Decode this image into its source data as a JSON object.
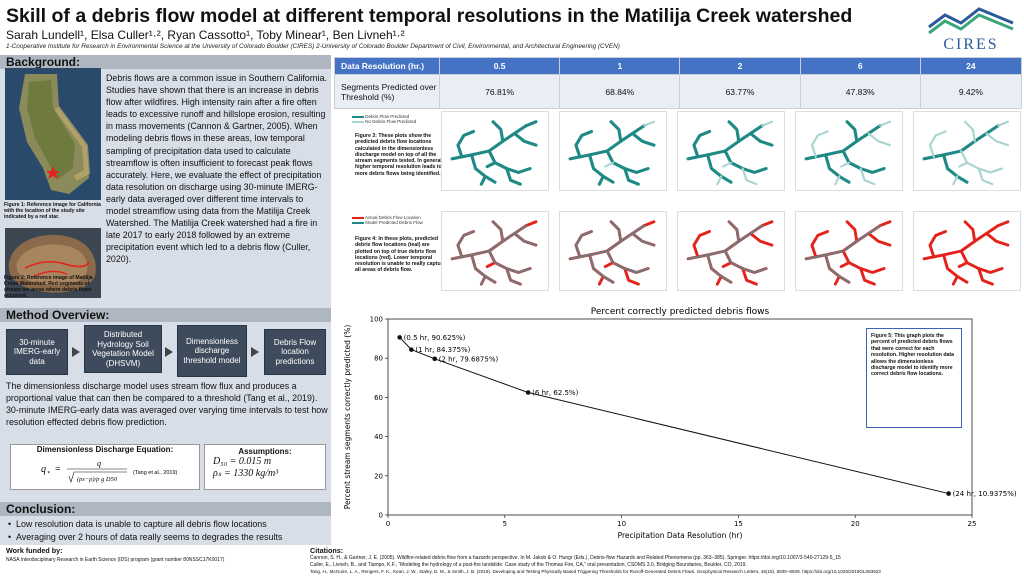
{
  "header": {
    "title": "Skill of a debris flow model at different temporal resolutions in the Matilija Creek watershed",
    "authors": "Sarah Lundell¹, Elsa Culler¹·², Ryan Cassotto¹, Toby Minear¹, Ben Livneh¹·²",
    "affiliations": "1-Cooperative Institute for Research in Environmental Science at the University of Colorado Boulder (CIRES)  2-University of Colorado Boulder Department of Civil, Environmental, and Architectural Engineering (CVEN)",
    "logo_text": "CIRES"
  },
  "background": {
    "title": "Background:",
    "text": "Debris flows are a common issue in Southern California. Studies have shown that there is an increase in debris flow after wildfires. High intensity rain after a fire often leads to excessive runoff and hillslope erosion, resulting in mass movements (Cannon & Gartner, 2005). When modeling debris flows in these areas, low temporal sampling of precipitation data used to calculate streamflow is often insufficient to forecast peak flows accurately. Here, we evaluate the effect of precipitation data resolution on discharge using 30-minute IMERG-early data averaged over different time intervals to model streamflow using data from the Matilija Creek Watershed. The Matilija Creek watershed had a fire in late 2017 to early 2018 followed by an extreme precipitation event which led to a debris flow (Culler, 2020).",
    "fig1_caption": "Figure 1: Reference image for California with the location of the study site indicated by a red star.",
    "fig2_caption": "Figure 2: Reference image of Matilija Creek Watershed. Red segments of stream are areas where debris flows occurred."
  },
  "method": {
    "title": "Method Overview:",
    "steps": [
      "30-minute IMERG-early data",
      "Distributed Hydrology Soil Vegetation Model (DHSVM)",
      "Dimensionless discharge threshold model",
      "Debris Flow location predictions"
    ],
    "text": "The dimensionless discharge model uses stream flow flux and produces a proportional value that can then be compared to a threshold (Tang et al., 2019). 30-minute IMERG-early data was averaged over varying time intervals to test how resolution effected debris flow prediction.",
    "eq_title": "Dimensionless Discharge Equation:",
    "eq_ref": "(Tang et al., 2019)",
    "assump_title": "Assumptions:",
    "assump_1": "D₅₀ = 0.015 m",
    "assump_2": "ρₛ = 1330 kg/m³"
  },
  "conclusion": {
    "title": "Conclusion:",
    "items": [
      "Low resolution data is unable to capture all debris flow locations",
      "Averaging over 2 hours of data really seems to degrades the results"
    ]
  },
  "footer": {
    "funded_title": "Work funded by:",
    "funded_text": "NASA Interdisciplinary Research in Earth Science (IDS) program (grant number 80NSSC17K0017)",
    "cit_title": "Citations:",
    "cit_1": "Cannon, S. H., & Gartner, J. E. (2005). Wildfire-related debris flow from a hazards perspective. In M. Jakob & O. Hungr (Eds.), Debris-flow Hazards and Related Phenomena (pp. 363–385). Springer. https://doi.org/10.1007/3-540-27129-5_15",
    "cit_2": "Culler, E., Livneh, B., and Tiampo, K.F., “Modeling the hydrology of a post-fire landslide: Case study of the Thomas Fire, CA,” oral presentation, CSDMS 3.0, Bridging Boundaries, Boulder, CO, 2019.",
    "cit_3": "Tang, H., McGuire, L. A., Rengers, F. K., Kean, J. W., Staley, D. M., & Smith, J. B. (2019). Developing and Testing Physically Based Triggering Thresholds for Runoff-Generated Debris Flows. Geophysical Research Letters, 46(15), 8830–8839. https://doi.org/10.1029/2019GL083623"
  },
  "table": {
    "header_label": "Data Resolution (hr.)",
    "resolutions": [
      "0.5",
      "1",
      "2",
      "6",
      "24"
    ],
    "row_label": "Segments Predicted over Threshold (%)",
    "values": [
      "76.81%",
      "68.84%",
      "63.77%",
      "47.83%",
      "9.42%"
    ]
  },
  "fig3": {
    "caption": "Figure 3: These plots show the predicted debris flow locations calculated in the dimensionless discharge model on top of all the stream segments tested. In general, higher temporal resolution leads to more debris flows being identified.",
    "legend_a": "Debris Flow Predicted",
    "legend_b": "No Debris Flow Predicted"
  },
  "fig4": {
    "caption": "Figure 4: In these plots, predicted debris flow locations (teal) are plotted on top of true debris flow locations (red). Lower temporal resolution is unable to really capture all areas of debris flow.",
    "legend_a": "Actual Debris Flow Location",
    "legend_b": "Model Predicted Debris Flow"
  },
  "fig5": {
    "caption": "Figure 5: This graph plots the percent of predicted debris flows that were correct for each resolution. Higher resolution data allows the dimensionless discharge model to identify more correct debris flow locations."
  },
  "colors": {
    "teal": "#1f8a85",
    "red": "#e3231b",
    "grey": "#6f7a7f",
    "accent": "#4472c4"
  },
  "chart_data": {
    "type": "line",
    "title": "Percent correctly predicted debris flows",
    "xlabel": "Precipitation Data Resolution (hr)",
    "ylabel": "Percent stream segments correctly predicted (%)",
    "xlim": [
      0,
      25
    ],
    "ylim": [
      0,
      100
    ],
    "xticks": [
      0,
      5,
      10,
      15,
      20,
      25
    ],
    "yticks": [
      0,
      20,
      40,
      60,
      80,
      100
    ],
    "x": [
      0.5,
      1,
      2,
      6,
      24
    ],
    "y": [
      90.625,
      84.375,
      79.6875,
      62.5,
      10.9375
    ],
    "labels": [
      "(0.5 hr, 90.625%)",
      "(1 hr, 84.375%)",
      "(2 hr, 79.6875%)",
      "(6 hr, 62.5%)",
      "(24 hr, 10.9375%)"
    ],
    "grid": false
  }
}
